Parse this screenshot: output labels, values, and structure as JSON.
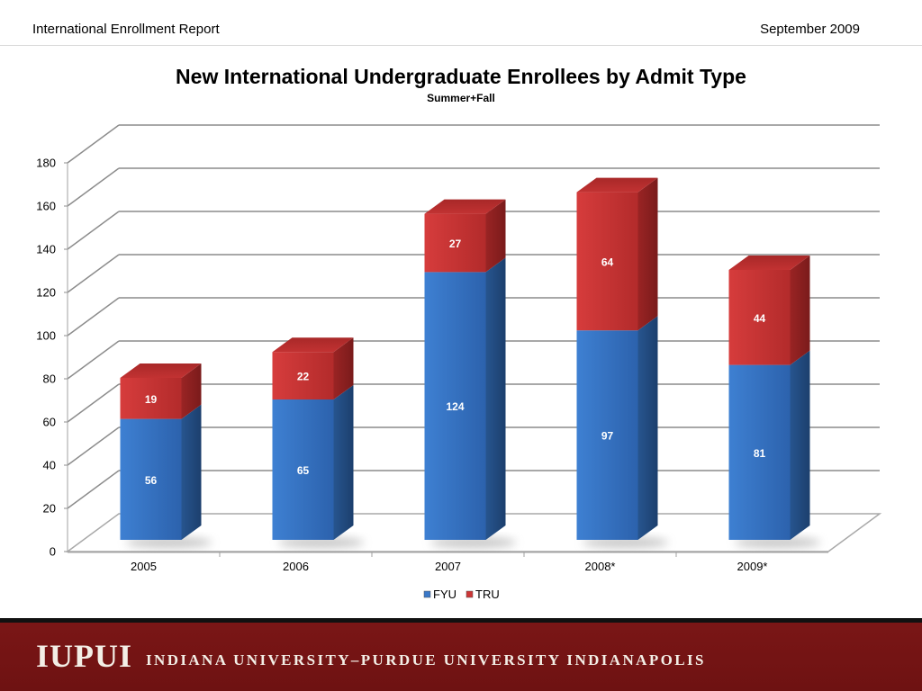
{
  "header": {
    "left": "International Enrollment Report",
    "right": "September 2009"
  },
  "chart_data": {
    "type": "bar",
    "stacked": true,
    "three_d": true,
    "title": "New International Undergraduate Enrollees by Admit Type",
    "subtitle": "Summer+Fall",
    "xlabel": "",
    "ylabel": "",
    "categories": [
      "2005",
      "2006",
      "2007",
      "2008*",
      "2009*"
    ],
    "series": [
      {
        "name": "FYU",
        "values": [
          56,
          65,
          124,
          97,
          81
        ],
        "color": "#3a78c8"
      },
      {
        "name": "TRU",
        "values": [
          19,
          22,
          27,
          64,
          44
        ],
        "color": "#cc3636"
      }
    ],
    "ylim": [
      0,
      180
    ],
    "yticks": [
      0,
      20,
      40,
      60,
      80,
      100,
      120,
      140,
      160,
      180
    ],
    "grid": true,
    "legend": "bottom"
  },
  "footer": {
    "logo": "IUPUI",
    "name": "INDIANA UNIVERSITY–PURDUE UNIVERSITY INDIANAPOLIS"
  }
}
